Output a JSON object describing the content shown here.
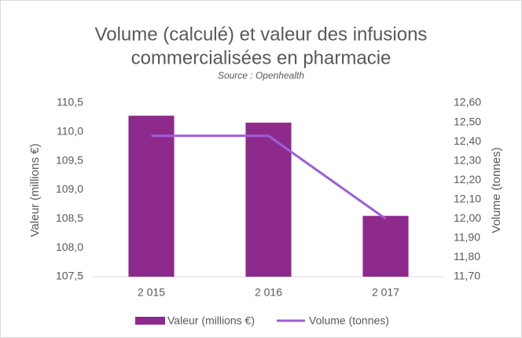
{
  "chart_data": {
    "type": "bar",
    "title": [
      "Volume (calculé) et valeur des infusions",
      "commercialisées en pharmacie"
    ],
    "subtitle": "Source : Openhealth",
    "categories": [
      "2 015",
      "2 016",
      "2 017"
    ],
    "series": [
      {
        "name": "Valeur (millions €)",
        "type": "bar",
        "color": "#8e2a8c",
        "values": [
          110.28,
          110.16,
          108.55
        ]
      },
      {
        "name": "Volume (tonnes)",
        "type": "line",
        "axis": "y2",
        "color": "#9b5fd8",
        "values": [
          12.43,
          12.43,
          12.0
        ]
      }
    ],
    "y_label": "Valeur (millions €)",
    "y2_label": "Volume (tonnes)",
    "ylim": [
      107.5,
      110.5
    ],
    "yticks": [
      {
        "value": 107.5,
        "label": "107,5"
      },
      {
        "value": 108,
        "label": "108,0"
      },
      {
        "value": 108.5,
        "label": "108,5"
      },
      {
        "value": 109,
        "label": "109,0"
      },
      {
        "value": 109.5,
        "label": "109,5"
      },
      {
        "value": 110,
        "label": "110,0"
      },
      {
        "value": 110.5,
        "label": "110,5"
      }
    ],
    "y2lim": [
      11.7,
      12.6
    ],
    "y2ticks": [
      {
        "value": 11.7,
        "label": "11,70"
      },
      {
        "value": 11.8,
        "label": "11,80"
      },
      {
        "value": 11.9,
        "label": "11,90"
      },
      {
        "value": 12,
        "label": "12,00"
      },
      {
        "value": 12.1,
        "label": "12,10"
      },
      {
        "value": 12.2,
        "label": "12,20"
      },
      {
        "value": 12.3,
        "label": "12,30"
      },
      {
        "value": 12.4,
        "label": "12,40"
      },
      {
        "value": 12.5,
        "label": "12,50"
      },
      {
        "value": 12.6,
        "label": "12,60"
      }
    ],
    "grid": false,
    "legend": "bottom"
  }
}
